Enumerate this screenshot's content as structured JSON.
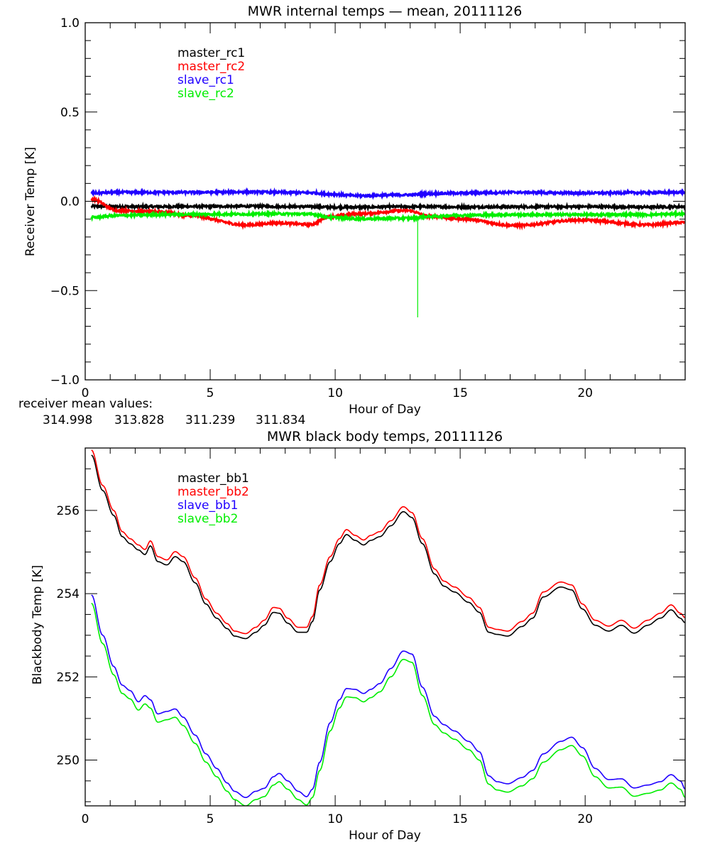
{
  "colors": {
    "black": "#000000",
    "red": "#ff0000",
    "blue": "#2000ff",
    "green": "#00ee00"
  },
  "chart_data": [
    {
      "type": "line",
      "title": "MWR internal temps — mean, 20111126",
      "xlabel": "Hour of Day",
      "ylabel": "Receiver Temp [K]",
      "xlim": [
        0,
        24
      ],
      "ylim": [
        -1.0,
        1.0
      ],
      "xticks": [
        "0",
        "5",
        "10",
        "15",
        "20"
      ],
      "xtick_values": [
        0,
        5,
        10,
        15,
        20
      ],
      "yticks": [
        "−1.0",
        "−0.5",
        "0.0",
        "0.5",
        "1.0"
      ],
      "ytick_values": [
        -1.0,
        -0.5,
        0.0,
        0.5,
        1.0
      ],
      "legend_position": "top-left",
      "x": [
        0.25,
        1.3,
        2.9,
        4.2,
        6.45,
        7.7,
        9.0,
        9.8,
        10.9,
        12.9,
        13.8,
        15.0,
        17.2,
        19.8,
        22.5,
        24.0
      ],
      "series": [
        {
          "name": "master_rc1",
          "color": "#000000",
          "values": [
            -0.028,
            -0.03,
            -0.03,
            -0.029,
            -0.028,
            -0.029,
            -0.03,
            -0.033,
            -0.033,
            -0.03,
            -0.03,
            -0.032,
            -0.031,
            -0.03,
            -0.032,
            -0.03
          ]
        },
        {
          "name": "master_rc2",
          "color": "#ff0000",
          "values": [
            0.012,
            -0.052,
            -0.058,
            -0.082,
            -0.133,
            -0.121,
            -0.13,
            -0.085,
            -0.07,
            -0.052,
            -0.085,
            -0.098,
            -0.136,
            -0.105,
            -0.132,
            -0.118
          ]
        },
        {
          "name": "slave_rc1",
          "color": "#2000ff",
          "values": [
            0.046,
            0.05,
            0.05,
            0.05,
            0.052,
            0.05,
            0.048,
            0.04,
            0.031,
            0.036,
            0.042,
            0.046,
            0.05,
            0.046,
            0.048,
            0.05
          ]
        },
        {
          "name": "slave_rc2",
          "color": "#00ee00",
          "values": [
            -0.09,
            -0.08,
            -0.075,
            -0.073,
            -0.072,
            -0.07,
            -0.072,
            -0.09,
            -0.098,
            -0.095,
            -0.085,
            -0.078,
            -0.075,
            -0.075,
            -0.075,
            -0.07
          ]
        }
      ],
      "spike": {
        "series": "slave_rc2",
        "x": 13.3,
        "value": -0.65
      },
      "annotation_label": "receiver mean values:",
      "annotation_values": [
        {
          "text": "314.998",
          "color": "#000000"
        },
        {
          "text": "313.828",
          "color": "#ff0000"
        },
        {
          "text": "311.239",
          "color": "#2000ff"
        },
        {
          "text": "311.834",
          "color": "#00ee00"
        }
      ]
    },
    {
      "type": "line",
      "title": "MWR black body temps, 20111126",
      "xlabel": "Hour of Day",
      "ylabel": "Blackbody Temp [K]",
      "xlim": [
        0,
        24
      ],
      "ylim": [
        248.9,
        257.5
      ],
      "xticks": [
        "0",
        "5",
        "10",
        "15",
        "20"
      ],
      "xtick_values": [
        0,
        5,
        10,
        15,
        20
      ],
      "yticks": [
        "250",
        "252",
        "254",
        "256"
      ],
      "ytick_values": [
        250,
        252,
        254,
        256
      ],
      "legend_position": "top-left",
      "x": [
        0.25,
        0.7,
        1.14,
        1.48,
        1.8,
        2.13,
        2.39,
        2.61,
        2.9,
        3.27,
        3.6,
        3.92,
        4.4,
        4.83,
        5.26,
        5.68,
        5.97,
        6.42,
        6.82,
        7.16,
        7.53,
        7.76,
        8.1,
        8.52,
        8.86,
        9.09,
        9.38,
        9.8,
        10.17,
        10.45,
        10.8,
        11.14,
        11.42,
        11.79,
        12.22,
        12.73,
        13.07,
        13.49,
        13.98,
        14.35,
        14.77,
        15.34,
        15.77,
        16.14,
        16.48,
        16.9,
        17.47,
        17.9,
        18.32,
        19.03,
        19.46,
        19.89,
        20.4,
        20.94,
        21.45,
        21.96,
        22.5,
        23.01,
        23.44,
        23.81,
        24.0
      ],
      "series": [
        {
          "name": "master_bb1",
          "color": "#000000",
          "values": [
            257.33,
            256.48,
            255.88,
            255.37,
            255.2,
            255.05,
            254.94,
            255.15,
            254.77,
            254.69,
            254.89,
            254.77,
            254.26,
            253.75,
            253.41,
            253.16,
            252.98,
            252.92,
            253.07,
            253.24,
            253.55,
            253.53,
            253.29,
            253.07,
            253.07,
            253.33,
            254.09,
            254.77,
            255.2,
            255.42,
            255.28,
            255.17,
            255.28,
            255.37,
            255.63,
            255.97,
            255.83,
            255.2,
            254.47,
            254.18,
            254.04,
            253.79,
            253.55,
            253.07,
            253.02,
            252.98,
            253.21,
            253.41,
            253.92,
            254.16,
            254.09,
            253.63,
            253.24,
            253.1,
            253.24,
            253.05,
            253.24,
            253.41,
            253.61,
            253.41,
            253.3
          ]
        },
        {
          "name": "master_bb2",
          "color": "#ff0000",
          "values": [
            257.45,
            256.6,
            256.0,
            255.49,
            255.32,
            255.17,
            255.06,
            255.27,
            254.89,
            254.81,
            255.01,
            254.89,
            254.38,
            253.87,
            253.53,
            253.28,
            253.1,
            253.04,
            253.19,
            253.36,
            253.67,
            253.65,
            253.41,
            253.19,
            253.19,
            253.45,
            254.21,
            254.89,
            255.32,
            255.54,
            255.4,
            255.29,
            255.4,
            255.49,
            255.75,
            256.09,
            255.95,
            255.32,
            254.59,
            254.3,
            254.16,
            253.91,
            253.67,
            253.19,
            253.14,
            253.1,
            253.33,
            253.53,
            254.04,
            254.28,
            254.21,
            253.75,
            253.36,
            253.22,
            253.36,
            253.17,
            253.36,
            253.53,
            253.73,
            253.53,
            253.42
          ]
        },
        {
          "name": "slave_bb1",
          "color": "#2000ff",
          "values": [
            253.97,
            253.0,
            252.25,
            251.8,
            251.67,
            251.4,
            251.55,
            251.45,
            251.11,
            251.17,
            251.23,
            251.03,
            250.6,
            250.15,
            249.8,
            249.45,
            249.25,
            249.1,
            249.25,
            249.32,
            249.6,
            249.68,
            249.5,
            249.25,
            249.12,
            249.3,
            249.95,
            250.9,
            251.45,
            251.72,
            251.7,
            251.6,
            251.7,
            251.84,
            252.2,
            252.62,
            252.55,
            251.75,
            251.05,
            250.85,
            250.7,
            250.45,
            250.2,
            249.62,
            249.48,
            249.43,
            249.58,
            249.75,
            250.15,
            250.45,
            250.55,
            250.3,
            249.8,
            249.53,
            249.55,
            249.33,
            249.4,
            249.48,
            249.65,
            249.5,
            249.3
          ]
        },
        {
          "name": "slave_bb2",
          "color": "#00ee00",
          "values": [
            253.77,
            252.8,
            252.05,
            251.6,
            251.47,
            251.2,
            251.35,
            251.25,
            250.91,
            250.97,
            251.03,
            250.83,
            250.4,
            249.95,
            249.6,
            249.25,
            249.05,
            248.9,
            249.05,
            249.12,
            249.4,
            249.48,
            249.3,
            249.05,
            248.92,
            249.1,
            249.75,
            250.7,
            251.25,
            251.52,
            251.5,
            251.4,
            251.5,
            251.64,
            252.0,
            252.42,
            252.35,
            251.55,
            250.85,
            250.65,
            250.5,
            250.25,
            250.0,
            249.42,
            249.28,
            249.23,
            249.38,
            249.55,
            249.95,
            250.25,
            250.35,
            250.1,
            249.6,
            249.33,
            249.35,
            249.13,
            249.2,
            249.28,
            249.45,
            249.3,
            249.1
          ]
        }
      ]
    }
  ]
}
